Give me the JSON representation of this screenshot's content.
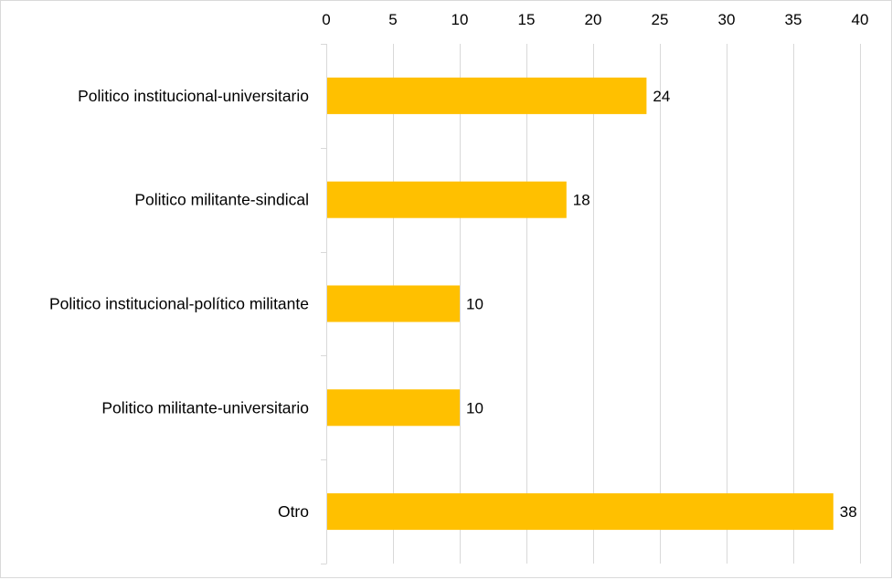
{
  "chart_data": {
    "type": "bar",
    "orientation": "horizontal",
    "title": "",
    "xlabel": "",
    "ylabel": "",
    "xlim": [
      0,
      40
    ],
    "x_ticks": [
      "0",
      "5",
      "10",
      "15",
      "20",
      "25",
      "30",
      "35",
      "40"
    ],
    "x_axis_position": "top",
    "grid": true,
    "categories": [
      "Politico institucional-universitario",
      "Politico militante-sindical",
      "Politico institucional-político militante",
      "Politico militante-universitario",
      "Otro"
    ],
    "values": [
      24,
      18,
      10,
      10,
      38
    ],
    "data_labels": [
      "24",
      "18",
      "10",
      "10",
      "38"
    ],
    "bar_color": "#FFC000",
    "grid_color": "#d9d9d9"
  }
}
